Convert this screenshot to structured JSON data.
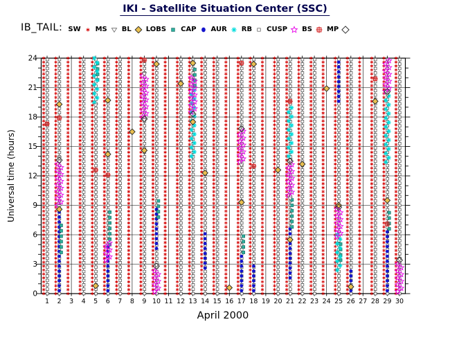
{
  "title": "IKI - Satellite Situation Center (SSC)",
  "legend": {
    "prefix": "IB_TAIL:",
    "items": [
      {
        "label": "SW",
        "symbol": "SW"
      },
      {
        "label": "MS",
        "symbol": "MS"
      },
      {
        "label": "BL",
        "symbol": "BL"
      },
      {
        "label": "LOBS",
        "symbol": "LOBS"
      },
      {
        "label": "CAP",
        "symbol": "CAP"
      },
      {
        "label": "AUR",
        "symbol": "AUR"
      },
      {
        "label": "RB",
        "symbol": "RB"
      },
      {
        "label": "CUSP",
        "symbol": "CUSP"
      },
      {
        "label": "BS",
        "symbol": "BS"
      },
      {
        "label": "MP",
        "symbol": "MP"
      }
    ]
  },
  "chart_data": {
    "type": "scatter",
    "title": "IKI - Satellite Situation Center (SSC)",
    "x_label": "April   2000",
    "y_label": "Universal time (hours)",
    "x_range": [
      0.5,
      30.5
    ],
    "y_range": [
      0,
      24
    ],
    "x_ticks": [
      1,
      2,
      3,
      4,
      5,
      6,
      7,
      8,
      9,
      10,
      11,
      12,
      13,
      14,
      15,
      16,
      17,
      18,
      19,
      20,
      21,
      22,
      23,
      24,
      25,
      26,
      27,
      28,
      29,
      30
    ],
    "y_ticks": [
      0,
      3,
      6,
      9,
      12,
      15,
      18,
      21,
      24
    ],
    "y_minor_step": 1,
    "grid": true,
    "symbol_styles": {
      "SW": {
        "stroke": "#d40000",
        "width": 0.9
      },
      "MS": {
        "fill": "#ffffff",
        "stroke": "#666666",
        "width": 0.8
      },
      "BL": {
        "fill": "#e9c050",
        "stroke": "#222222",
        "width": 0.9
      },
      "LOBS": {
        "fill": "#2fae9e",
        "stroke": "#14695e",
        "width": 0.6
      },
      "CAP": {
        "fill": "#1414cc"
      },
      "AUR": {
        "stroke": "#00dcdc",
        "width": 1.1
      },
      "RB": {
        "fill": "#ffffff",
        "stroke": "#444444",
        "width": 0.7
      },
      "CUSP": {
        "stroke": "#e800e8",
        "width": 0.9
      },
      "BS": {
        "stroke": "#d42222",
        "width": 1.1
      },
      "MP": {
        "stroke": "#333333",
        "width": 1.0
      }
    },
    "columns": [
      {
        "symbol": "SW",
        "days": [
          1,
          2,
          3,
          4,
          5,
          6,
          7,
          8,
          9,
          10,
          11,
          12,
          13,
          14,
          15,
          16,
          17,
          18,
          19,
          20,
          21,
          22,
          23,
          24,
          25,
          26,
          27,
          28,
          29,
          30
        ],
        "from": 0,
        "to": 24,
        "step": 0.4,
        "dx": -0.28,
        "zigzag": 0
      },
      {
        "symbol": "RB",
        "days": [
          1,
          2,
          4,
          5,
          6,
          7,
          9,
          10,
          12,
          13,
          14,
          15,
          17,
          18,
          20,
          21,
          22,
          23,
          25,
          26,
          28,
          29,
          30
        ],
        "from": 0,
        "to": 24,
        "step": 0.45,
        "dx": 0.02,
        "zigzag": 0
      },
      {
        "symbol": "CUSP",
        "step": 0.35,
        "dx": 0,
        "zigzag": 0.14,
        "spans": [
          [
            2,
            9.0,
            13.5
          ],
          [
            6,
            3.4,
            5.2
          ],
          [
            9,
            18.0,
            22.2
          ],
          [
            10,
            0.2,
            2.6
          ],
          [
            13,
            18.5,
            22.3
          ],
          [
            17,
            13.4,
            16.6
          ],
          [
            21,
            10.0,
            13.4
          ],
          [
            25,
            5.8,
            8.6
          ],
          [
            29,
            20.6,
            24.0
          ],
          [
            30,
            0.2,
            3.2
          ]
        ]
      },
      {
        "symbol": "AUR",
        "step": 0.45,
        "dx": 0,
        "zigzag": 0.12,
        "spans": [
          [
            5,
            19.5,
            24.0
          ],
          [
            13,
            14.0,
            21.0
          ],
          [
            21,
            14.0,
            19.2
          ],
          [
            25,
            2.4,
            6.2
          ],
          [
            29,
            13.4,
            20.4
          ]
        ]
      },
      {
        "symbol": "CAP",
        "step": 0.5,
        "dx": 0,
        "zigzag": 0,
        "spans": [
          [
            2,
            0.3,
            8.7
          ],
          [
            6,
            0.3,
            4.8
          ],
          [
            10,
            4.6,
            9.0
          ],
          [
            14,
            2.6,
            6.2
          ],
          [
            17,
            0.3,
            4.0
          ],
          [
            18,
            0.3,
            2.8
          ],
          [
            21,
            1.6,
            6.6
          ],
          [
            25,
            19.6,
            23.7
          ],
          [
            26,
            0.3,
            2.6
          ],
          [
            29,
            0.3,
            6.4
          ]
        ]
      },
      {
        "symbol": "LOBS",
        "step": 0.55,
        "dx": 0.16,
        "zigzag": 0,
        "spans": [
          [
            2,
            4.2,
            7.0
          ],
          [
            5,
            21.8,
            23.8
          ],
          [
            6,
            5.0,
            8.6
          ],
          [
            10,
            7.8,
            9.6
          ],
          [
            13,
            21.2,
            23.2
          ],
          [
            17,
            4.2,
            6.2
          ],
          [
            21,
            6.8,
            9.6
          ],
          [
            25,
            3.4,
            5.4
          ],
          [
            29,
            6.6,
            8.6
          ]
        ]
      }
    ],
    "points": [
      {
        "symbol": "MS",
        "pts": [
          [
            2,
            13.8
          ],
          [
            2,
            8.9
          ],
          [
            5,
            19.2
          ],
          [
            9,
            17.7
          ],
          [
            9,
            22.4
          ],
          [
            10,
            2.9
          ],
          [
            13,
            17.8
          ],
          [
            17,
            13.1
          ],
          [
            21,
            9.7
          ],
          [
            21,
            13.6
          ],
          [
            29,
            20.3
          ],
          [
            30,
            3.5
          ]
        ]
      },
      {
        "symbol": "BL",
        "pts": [
          [
            2,
            19.3
          ],
          [
            2,
            8.6
          ],
          [
            5,
            0.8
          ],
          [
            6,
            14.2
          ],
          [
            6,
            19.7
          ],
          [
            8,
            16.5
          ],
          [
            9,
            14.6
          ],
          [
            10,
            23.4
          ],
          [
            12,
            21.4
          ],
          [
            13,
            17.5
          ],
          [
            13,
            23.5
          ],
          [
            14,
            12.3
          ],
          [
            16,
            0.6
          ],
          [
            17,
            9.3
          ],
          [
            18,
            23.4
          ],
          [
            20,
            12.6
          ],
          [
            21,
            5.5
          ],
          [
            22,
            13.2
          ],
          [
            24,
            20.9
          ],
          [
            25,
            9.0
          ],
          [
            26,
            0.7
          ],
          [
            28,
            19.6
          ],
          [
            29,
            9.5
          ]
        ]
      },
      {
        "symbol": "BS",
        "pts": [
          [
            1,
            17.3
          ],
          [
            2,
            17.9
          ],
          [
            5,
            12.6
          ],
          [
            6,
            12.1
          ],
          [
            9,
            23.8
          ],
          [
            17,
            23.5
          ],
          [
            18,
            13.0
          ],
          [
            21,
            19.6
          ],
          [
            28,
            21.9
          ],
          [
            29,
            7.1
          ]
        ]
      },
      {
        "symbol": "MP",
        "pts": [
          [
            2,
            13.6
          ],
          [
            9,
            17.8
          ],
          [
            10,
            2.8
          ],
          [
            13,
            18.3
          ],
          [
            17,
            16.8
          ],
          [
            21,
            13.5
          ],
          [
            25,
            8.8
          ],
          [
            29,
            20.6
          ],
          [
            30,
            3.4
          ]
        ]
      }
    ]
  }
}
